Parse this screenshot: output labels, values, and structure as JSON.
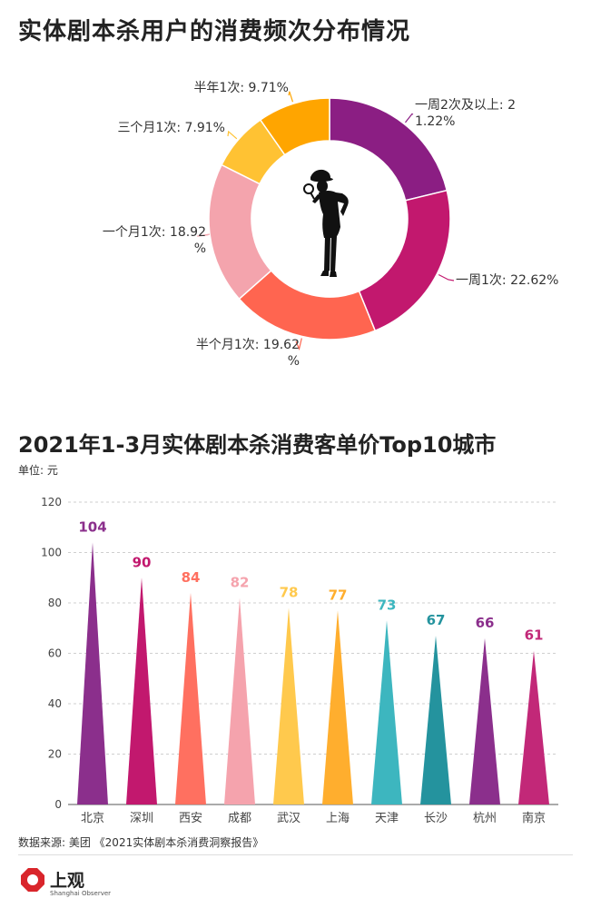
{
  "donut": {
    "title": "实体剧本杀用户的消费频次分布情况",
    "chart_data": {
      "type": "pie",
      "variant": "donut",
      "title": "实体剧本杀用户的消费频次分布情况",
      "slices": [
        {
          "label": "一周2次及以上",
          "value": 21.22,
          "text": [
            "一周2次及以上: 2",
            "1.22%"
          ],
          "color": "#8B1E83"
        },
        {
          "label": "一周1次",
          "value": 22.62,
          "text": [
            "一周1次: 22.62%"
          ],
          "color": "#C2186E"
        },
        {
          "label": "半个月1次",
          "value": 19.62,
          "text": [
            "半个月1次: 19.62",
            "%"
          ],
          "color": "#FF6550"
        },
        {
          "label": "一个月1次",
          "value": 18.92,
          "text": [
            "一个月1次: 18.92",
            "%"
          ],
          "color": "#F4A4AD"
        },
        {
          "label": "三个月1次",
          "value": 7.91,
          "text": [
            "三个月1次: 7.91%"
          ],
          "color": "#FFC233"
        },
        {
          "label": "半年1次",
          "value": 9.71,
          "text": [
            "半年1次: 9.71%"
          ],
          "color": "#FFA500"
        }
      ]
    }
  },
  "bars": {
    "title": "2021年1-3月实体剧本杀消费客单价Top10城市",
    "unit_label": "单位: 元",
    "chart_data": {
      "type": "bar",
      "title": "2021年1-3月实体剧本杀消费客单价Top10城市",
      "ylabel": "单位: 元",
      "ylim": [
        0,
        120
      ],
      "yticks": [
        0,
        20,
        40,
        60,
        80,
        100,
        120
      ],
      "grid": true,
      "categories": [
        "北京",
        "深圳",
        "西安",
        "成都",
        "武汉",
        "上海",
        "天津",
        "长沙",
        "杭州",
        "南京"
      ],
      "values": [
        104,
        90,
        84,
        82,
        78,
        77,
        73,
        67,
        66,
        61
      ],
      "colors": [
        "#8B2F8C",
        "#C2186E",
        "#FF7060",
        "#F5A3AD",
        "#FFC94D",
        "#FFAE2E",
        "#3DB6BF",
        "#24939E",
        "#8B2F8C",
        "#C22878"
      ]
    }
  },
  "footer": {
    "source": "数据来源: 美团 《2021实体剧本杀消费洞察报告》",
    "logo_name": "上观",
    "logo_sub": "Shanghai Observer"
  }
}
